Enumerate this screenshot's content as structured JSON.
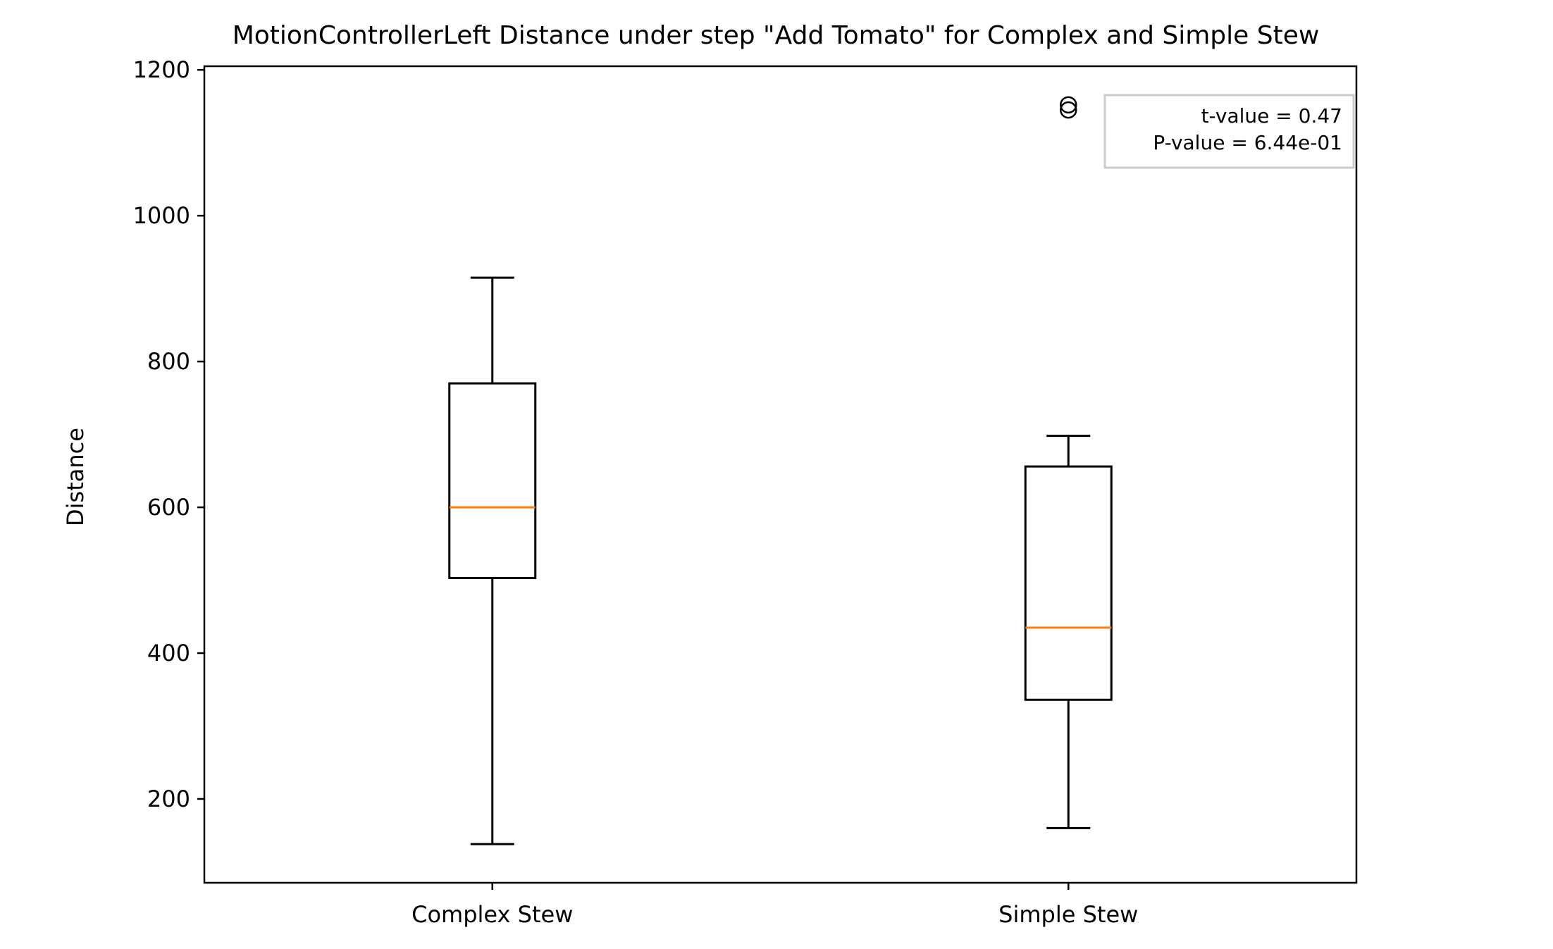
{
  "chart_data": {
    "type": "box",
    "title": "MotionControllerLeft Distance under step \"Add Tomato\" for Complex and Simple Stew",
    "xlabel": "",
    "ylabel": "Distance",
    "ylim": [
      85,
      1205
    ],
    "yticks": [
      200,
      400,
      600,
      800,
      1000,
      1200
    ],
    "categories": [
      "Complex Stew",
      "Simple Stew"
    ],
    "boxes": [
      {
        "category": "Complex Stew",
        "whisker_low": 138,
        "q1": 503,
        "median": 600,
        "q3": 770,
        "whisker_high": 915,
        "outliers": []
      },
      {
        "category": "Simple Stew",
        "whisker_low": 160,
        "q1": 336,
        "median": 435,
        "q3": 656,
        "whisker_high": 698,
        "outliers": [
          1145,
          1152
        ]
      }
    ],
    "annotation_lines": [
      "t-value = 0.47",
      "P-value = 6.44e-01"
    ],
    "colors": {
      "box": "#000000",
      "median": "#ff7f0e",
      "annotation_border": "#cccccc"
    },
    "grid": false
  }
}
